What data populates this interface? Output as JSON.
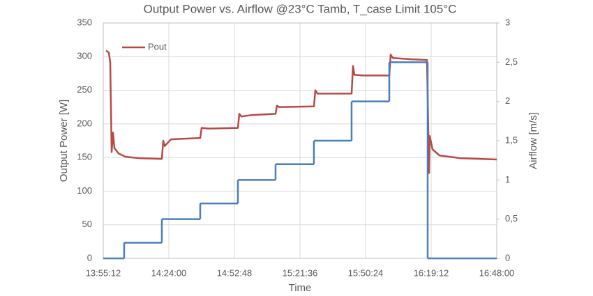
{
  "chart_data": {
    "type": "line",
    "title": "Output Power vs. Airflow @23°C Tamb, T_case Limit 105°C",
    "x_label": "Time",
    "y_label": "Output Power [W]",
    "y2_label": "Airflow [m/s]",
    "xlim": [
      "13:55:12",
      "16:48:00"
    ],
    "xticks": [
      "13:55:12",
      "14:24:00",
      "14:52:48",
      "15:21:36",
      "15:50:24",
      "16:19:12",
      "16:48:00"
    ],
    "ylim": [
      0,
      350
    ],
    "yticks": [
      0,
      50,
      100,
      150,
      200,
      250,
      300,
      350
    ],
    "y2lim": [
      0,
      3
    ],
    "y2ticks": [
      0,
      {
        "value": 0.5,
        "label": "0,5"
      },
      1,
      {
        "value": 1.5,
        "label": "1,5"
      },
      2,
      {
        "value": 2.5,
        "label": "2,5"
      },
      3
    ],
    "grid": true,
    "legend": "upper left",
    "series": [
      {
        "name": "Pout",
        "color": "#b84a45",
        "x": [
          "13:56:26",
          "13:57:39",
          "13:58:16",
          "13:58:53",
          "13:59:29",
          "14:00:06",
          "14:01:56",
          "14:05:00",
          "14:11:08",
          "14:20:56",
          "14:21:33",
          "14:22:10",
          "14:24:55",
          "14:37:47",
          "14:38:24",
          "14:41:46",
          "14:54:20",
          "14:54:57",
          "14:55:52",
          "15:00:09",
          "15:10:53",
          "15:11:29",
          "15:12:25",
          "15:27:44",
          "15:28:20",
          "15:29:16",
          "15:44:16",
          "15:44:53",
          "15:45:30",
          "15:49:10",
          "16:00:49",
          "16:01:26",
          "16:02:21",
          "16:10:37",
          "16:17:22",
          "16:17:58",
          "16:18:17",
          "16:18:35",
          "16:19:49",
          "16:22:53",
          "16:32:04",
          "16:48:00"
        ],
        "values": [
          309,
          306,
          291,
          158,
          187,
          164,
          156,
          151,
          149,
          148,
          175,
          167,
          177,
          179,
          194,
          193,
          194,
          215,
          211,
          213,
          215,
          227,
          225,
          226,
          250,
          245,
          245,
          286,
          273,
          272,
          272,
          303,
          298,
          296,
          295,
          187,
          127,
          182,
          162,
          153,
          149,
          147
        ]
      },
      {
        "color": "#4a7ebb",
        "axis": "y2",
        "step": "post",
        "x": [
          "13:55:12",
          "14:04:23",
          "14:20:56",
          "14:37:47",
          "14:54:20",
          "15:10:52",
          "15:27:43",
          "15:44:16",
          "16:00:49",
          "16:17:40"
        ],
        "values": [
          0,
          0.2,
          0.5,
          0.7,
          1.0,
          1.2,
          1.5,
          2.0,
          2.5,
          0
        ]
      }
    ]
  }
}
